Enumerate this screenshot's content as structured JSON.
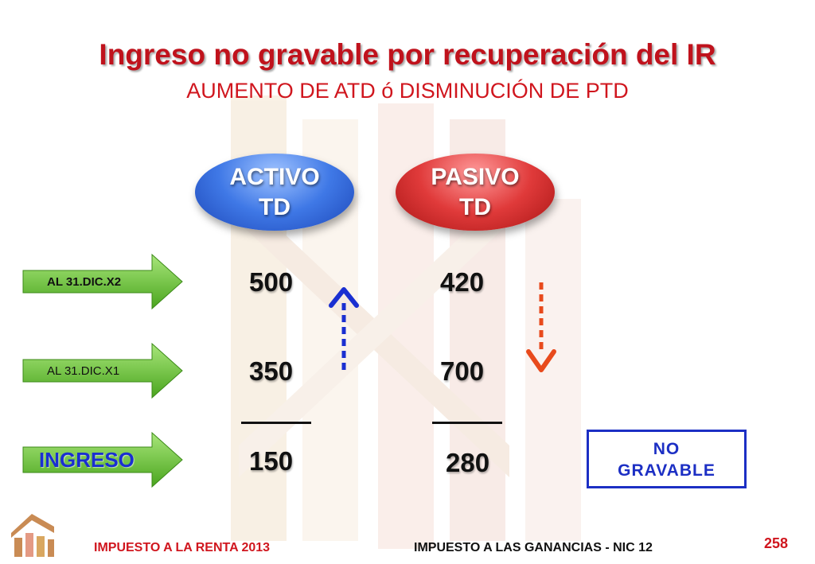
{
  "slide": {
    "title": "Ingreso no gravable por recuperación del IR",
    "subtitle": "AUMENTO DE ATD ó DISMINUCIÓN DE PTD"
  },
  "columns": [
    {
      "line1": "ACTIVO",
      "line2": "TD",
      "color": "#2e64d6"
    },
    {
      "line1": "PASIVO",
      "line2": "TD",
      "color": "#d12a2a"
    }
  ],
  "rows": [
    {
      "label": "AL 31.DIC.X2",
      "activo": "500",
      "pasivo": "420"
    },
    {
      "label": "AL 31.DIC.X1",
      "activo": "350",
      "pasivo": "700"
    }
  ],
  "result": {
    "label": "INGRESO",
    "activo": "150",
    "pasivo": "280"
  },
  "badge": {
    "line1": "NO",
    "line2": "GRAVABLE"
  },
  "footer": {
    "left": "IMPUESTO A LA RENTA 2013",
    "center": "IMPUESTO A LAS GANANCIAS - NIC 12",
    "page": "258"
  },
  "colors": {
    "title": "#c0121c",
    "arrow_up": "#1a2fd1",
    "arrow_down": "#e84a1c",
    "label_arrow": "#5cc02e",
    "badge_border": "#1c2fc4"
  }
}
